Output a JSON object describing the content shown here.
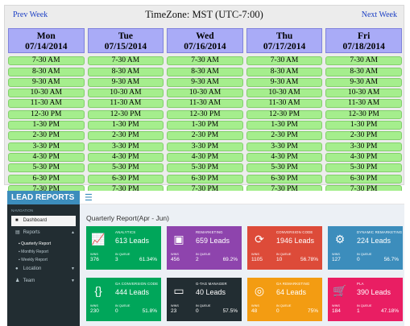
{
  "schedule": {
    "prev_label": "Prev Week",
    "next_label": "Next Week",
    "timezone": "TimeZone: MST (UTC-7:00)",
    "days": [
      {
        "name": "Mon",
        "date": "07/14/2014"
      },
      {
        "name": "Tue",
        "date": "07/15/2014"
      },
      {
        "name": "Wed",
        "date": "07/16/2014"
      },
      {
        "name": "Thu",
        "date": "07/17/2014"
      },
      {
        "name": "Fri",
        "date": "07/18/2014"
      }
    ],
    "slots": [
      "7-30 AM",
      "8-30 AM",
      "9-30 AM",
      "10-30 AM",
      "11-30 AM",
      "12-30 PM",
      "1-30 PM",
      "2-30 PM",
      "3-30 PM",
      "4-30 PM",
      "5-30 PM",
      "6-30 PM",
      "7-30 PM"
    ],
    "colors": {
      "header": "#a9abf7",
      "slot": "#a5ee8d"
    }
  },
  "app": {
    "brand": "LEAD REPORTS",
    "nav_caption": "NAVIGATION",
    "menu": {
      "dashboard": "Dashboard",
      "reports": "Reports",
      "quarterly": "Quarterly Report",
      "monthly": "Monthly Report",
      "weekly": "Weekly Report",
      "location": "Location",
      "team": "Team"
    },
    "page_title": "Quarterly Report(Apr - Jun)",
    "cards": [
      {
        "name": "ANALYTICS",
        "leads": "613 Leads",
        "wins": "376",
        "queue": "3",
        "pct": "61.34%",
        "color": "#00a65a",
        "icon": "chart-icon"
      },
      {
        "name": "REMARKETING",
        "leads": "659 Leads",
        "wins": "456",
        "queue": "2",
        "pct": "69.2%",
        "color": "#8e44ad",
        "icon": "remarketing-icon"
      },
      {
        "name": "CONVERSION CODE",
        "leads": "1946 Leads",
        "wins": "1105",
        "queue": "10",
        "pct": "56.78%",
        "color": "#dd4b39",
        "icon": "conversion-icon"
      },
      {
        "name": "DYNAMIC REMARKETING",
        "leads": "224 Leads",
        "wins": "127",
        "queue": "0",
        "pct": "56.7%",
        "color": "#3c8dbc",
        "icon": "dynamic-icon"
      },
      {
        "name": "GA CONVERSION CODE",
        "leads": "444 Leads",
        "wins": "230",
        "queue": "0",
        "pct": "51.8%",
        "color": "#00a65a",
        "icon": "code-icon"
      },
      {
        "name": "G-TAG MANAGER",
        "leads": "40 Leads",
        "wins": "23",
        "queue": "0",
        "pct": "57.5%",
        "color": "#222d32",
        "icon": "tag-icon"
      },
      {
        "name": "GA REMARKETING",
        "leads": "64 Leads",
        "wins": "48",
        "queue": "0",
        "pct": "75%",
        "color": "#f39c12",
        "icon": "target-icon"
      },
      {
        "name": "PLA",
        "leads": "390 Leads",
        "wins": "184",
        "queue": "1",
        "pct": "47.18%",
        "color": "#e91e63",
        "icon": "cart-icon"
      }
    ],
    "labels": {
      "wins": "WINS",
      "queue": "IN QUEUE"
    }
  }
}
